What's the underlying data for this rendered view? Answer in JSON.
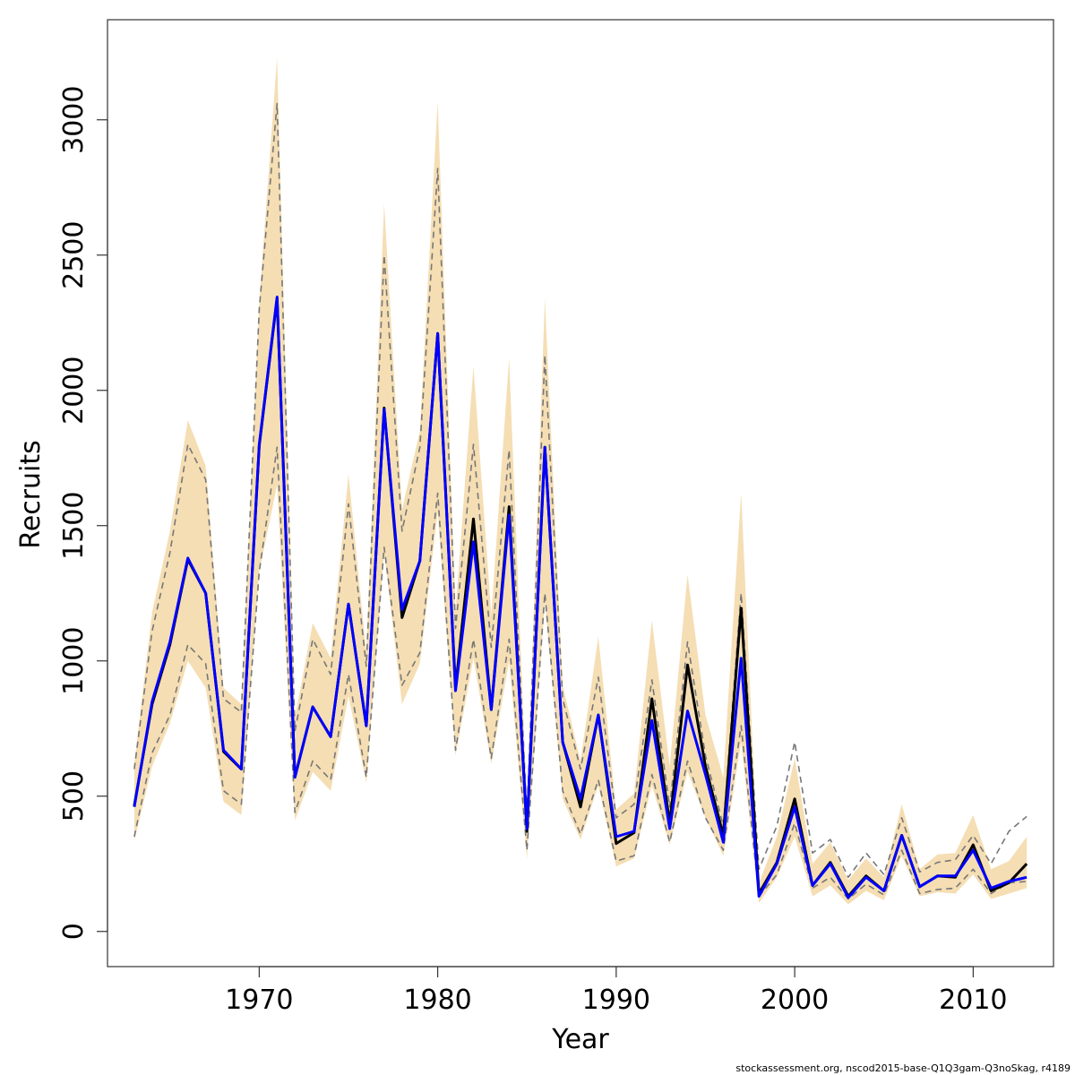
{
  "chart_data": {
    "type": "line",
    "xlabel": "Year",
    "ylabel": "Recruits",
    "xlim": [
      1961.5,
      2014.5
    ],
    "ylim": [
      -130,
      3370
    ],
    "x_ticks": [
      1970,
      1980,
      1990,
      2000,
      2010
    ],
    "y_ticks": [
      0,
      500,
      1000,
      1500,
      2000,
      2500,
      3000
    ],
    "grid": false,
    "x": [
      1963,
      1964,
      1965,
      1966,
      1967,
      1968,
      1969,
      1970,
      1971,
      1972,
      1973,
      1974,
      1975,
      1976,
      1977,
      1978,
      1979,
      1980,
      1981,
      1982,
      1983,
      1984,
      1985,
      1986,
      1987,
      1988,
      1989,
      1990,
      1991,
      1992,
      1993,
      1994,
      1995,
      1996,
      1997,
      1998,
      1999,
      2000,
      2001,
      2002,
      2003,
      2004,
      2005,
      2006,
      2007,
      2008,
      2009,
      2010,
      2011,
      2012,
      2013
    ],
    "band": {
      "color": "#f5deb3",
      "lower": [
        335,
        610,
        770,
        1000,
        900,
        480,
        430,
        1330,
        1650,
        410,
        590,
        520,
        870,
        550,
        1400,
        840,
        990,
        1550,
        650,
        1010,
        620,
        1000,
        270,
        1220,
        490,
        340,
        540,
        240,
        270,
        540,
        320,
        590,
        420,
        280,
        700,
        105,
        200,
        350,
        130,
        170,
        100,
        150,
        115,
        280,
        130,
        145,
        140,
        210,
        120,
        140,
        160
      ],
      "upper": [
        620,
        1180,
        1480,
        1890,
        1720,
        900,
        840,
        2330,
        3230,
        790,
        1140,
        1010,
        1690,
        1030,
        2690,
        1560,
        1850,
        3070,
        1180,
        2090,
        1170,
        2120,
        460,
        2340,
        910,
        630,
        1090,
        450,
        510,
        1150,
        610,
        1320,
        800,
        570,
        1620,
        180,
        350,
        640,
        250,
        330,
        190,
        270,
        200,
        470,
        230,
        285,
        290,
        430,
        230,
        260,
        350
      ]
    },
    "series": [
      {
        "color": "#000000",
        "dash": "solid",
        "values": [
          465,
          840,
          1060,
          1375,
          1250,
          665,
          600,
          1795,
          2340,
          570,
          830,
          720,
          1210,
          760,
          1935,
          1160,
          1370,
          2210,
          900,
          1525,
          820,
          1570,
          370,
          1790,
          700,
          460,
          800,
          325,
          365,
          860,
          400,
          985,
          610,
          355,
          1195,
          140,
          255,
          490,
          170,
          255,
          130,
          205,
          150,
          355,
          165,
          205,
          200,
          320,
          150,
          180,
          250
        ]
      },
      {
        "color": "#0000ff",
        "dash": "solid",
        "values": [
          460,
          850,
          1070,
          1380,
          1250,
          670,
          600,
          1800,
          2345,
          570,
          830,
          720,
          1210,
          760,
          1930,
          1190,
          1370,
          2210,
          890,
          1440,
          820,
          1540,
          380,
          1790,
          700,
          490,
          800,
          350,
          370,
          780,
          380,
          815,
          580,
          330,
          1010,
          130,
          250,
          460,
          170,
          250,
          125,
          200,
          150,
          355,
          165,
          205,
          205,
          300,
          160,
          185,
          200
        ]
      },
      {
        "color": "#777777",
        "dash": "dashed",
        "values": [
          350,
          660,
          800,
          1060,
          990,
          520,
          470,
          1330,
          1790,
          440,
          630,
          560,
          950,
          570,
          1420,
          910,
          1030,
          1620,
          670,
          1080,
          640,
          1080,
          300,
          1250,
          520,
          360,
          560,
          260,
          280,
          580,
          330,
          630,
          420,
          300,
          760,
          130,
          210,
          400,
          160,
          200,
          120,
          175,
          135,
          300,
          140,
          155,
          160,
          230,
          140,
          180,
          185
        ]
      },
      {
        "color": "#777777",
        "dash": "dashed",
        "values": [
          600,
          1110,
          1400,
          1800,
          1670,
          860,
          810,
          2300,
          3060,
          740,
          1080,
          950,
          1580,
          980,
          2500,
          1480,
          1790,
          2820,
          1120,
          1800,
          1050,
          1780,
          430,
          2130,
          860,
          600,
          940,
          420,
          470,
          930,
          460,
          1070,
          650,
          390,
          1250,
          230,
          390,
          700,
          290,
          340,
          200,
          290,
          210,
          420,
          220,
          255,
          265,
          355,
          250,
          370,
          425
        ]
      }
    ],
    "annotation": "stockassessment.org, nscod2015-base-Q1Q3gam-Q3noSkag, r4189"
  }
}
